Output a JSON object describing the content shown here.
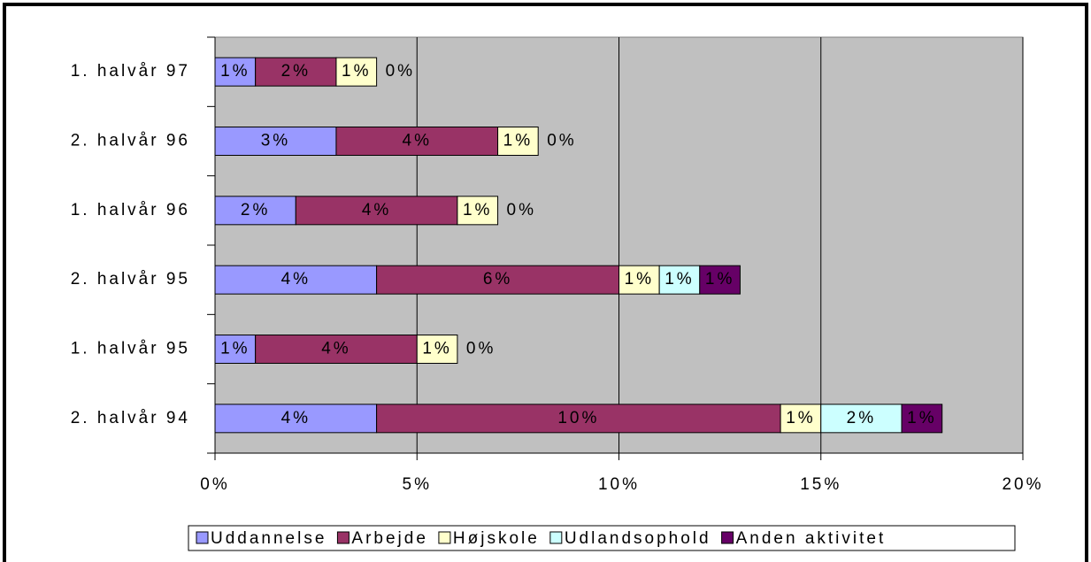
{
  "chart_data": {
    "type": "bar",
    "orientation": "horizontal",
    "stacked": true,
    "categories": [
      "1. halvår 97",
      "2. halvår 96",
      "1. halvår 96",
      "2. halvår 95",
      "1. halvår 95",
      "2. halvår 94"
    ],
    "series": [
      {
        "name": "Uddannelse",
        "color": "#9999ff",
        "values": [
          1,
          3,
          2,
          4,
          1,
          4
        ],
        "value_labels": [
          "1%",
          "3%",
          "2%",
          "4%",
          "1%",
          "4%"
        ]
      },
      {
        "name": "Arbejde",
        "color": "#993366",
        "values": [
          2,
          4,
          4,
          6,
          4,
          10
        ],
        "value_labels": [
          "2%",
          "4%",
          "4%",
          "6%",
          "4%",
          "10%"
        ]
      },
      {
        "name": "Højskole",
        "color": "#ffffcc",
        "values": [
          1,
          1,
          1,
          1,
          1,
          1
        ],
        "value_labels": [
          "1%",
          "1%",
          "1%",
          "1%",
          "1%",
          "1%"
        ]
      },
      {
        "name": "Udlandsophold",
        "color": "#ccffff",
        "values": [
          0,
          0,
          0,
          1,
          0,
          2
        ],
        "value_labels": [
          "0%",
          "0%",
          "0%",
          "1%",
          "0%",
          "2%"
        ]
      },
      {
        "name": "Anden aktivitet",
        "color": "#660066",
        "values": [
          null,
          null,
          null,
          1,
          null,
          1
        ],
        "value_labels": [
          null,
          null,
          null,
          "1%",
          null,
          "1%"
        ]
      }
    ],
    "xlim": [
      0,
      20
    ],
    "xticks": [
      {
        "value": 0,
        "label": "0%"
      },
      {
        "value": 5,
        "label": "5%"
      },
      {
        "value": 10,
        "label": "10%"
      },
      {
        "value": 15,
        "label": "15%"
      },
      {
        "value": 20,
        "label": "20%"
      }
    ],
    "grid": true,
    "plot_background": "#c0c0c0",
    "legend": "bottom"
  }
}
